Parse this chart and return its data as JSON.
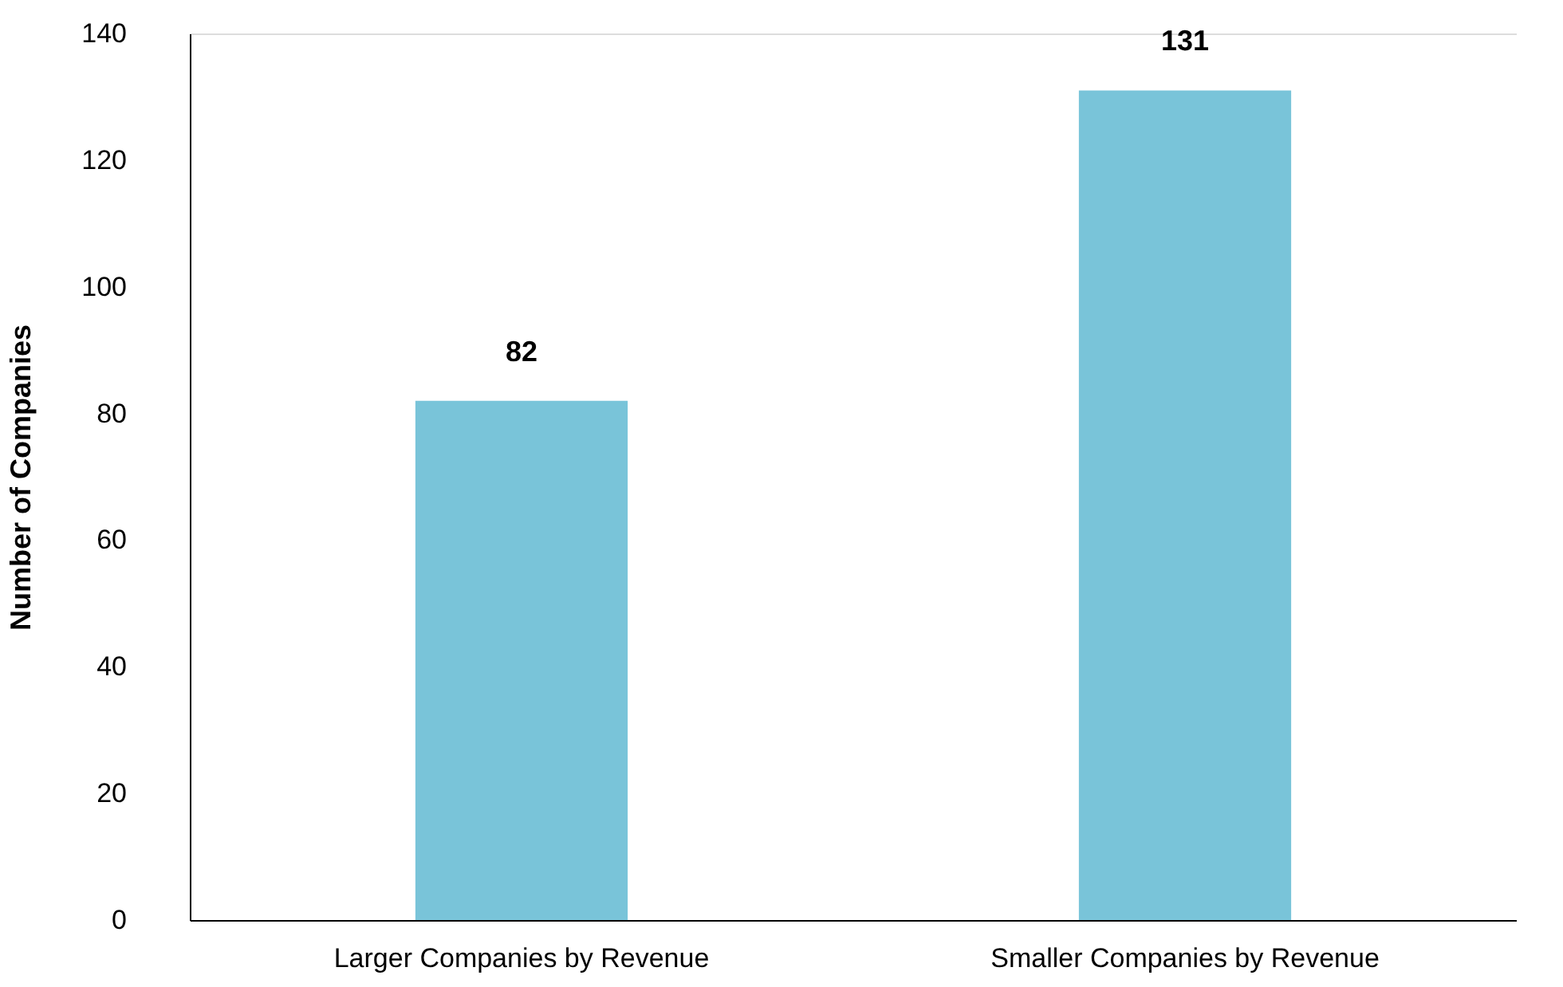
{
  "chart_data": {
    "type": "bar",
    "categories": [
      "Larger Companies by Revenue",
      "Smaller Companies by Revenue"
    ],
    "values": [
      82,
      131
    ],
    "color": "#79c4d9",
    "ylabel": "Number of Companies",
    "ylim": [
      0,
      140
    ],
    "yticks": [
      0,
      20,
      40,
      60,
      80,
      100,
      120,
      140
    ],
    "data_labels": true,
    "grid": false
  }
}
